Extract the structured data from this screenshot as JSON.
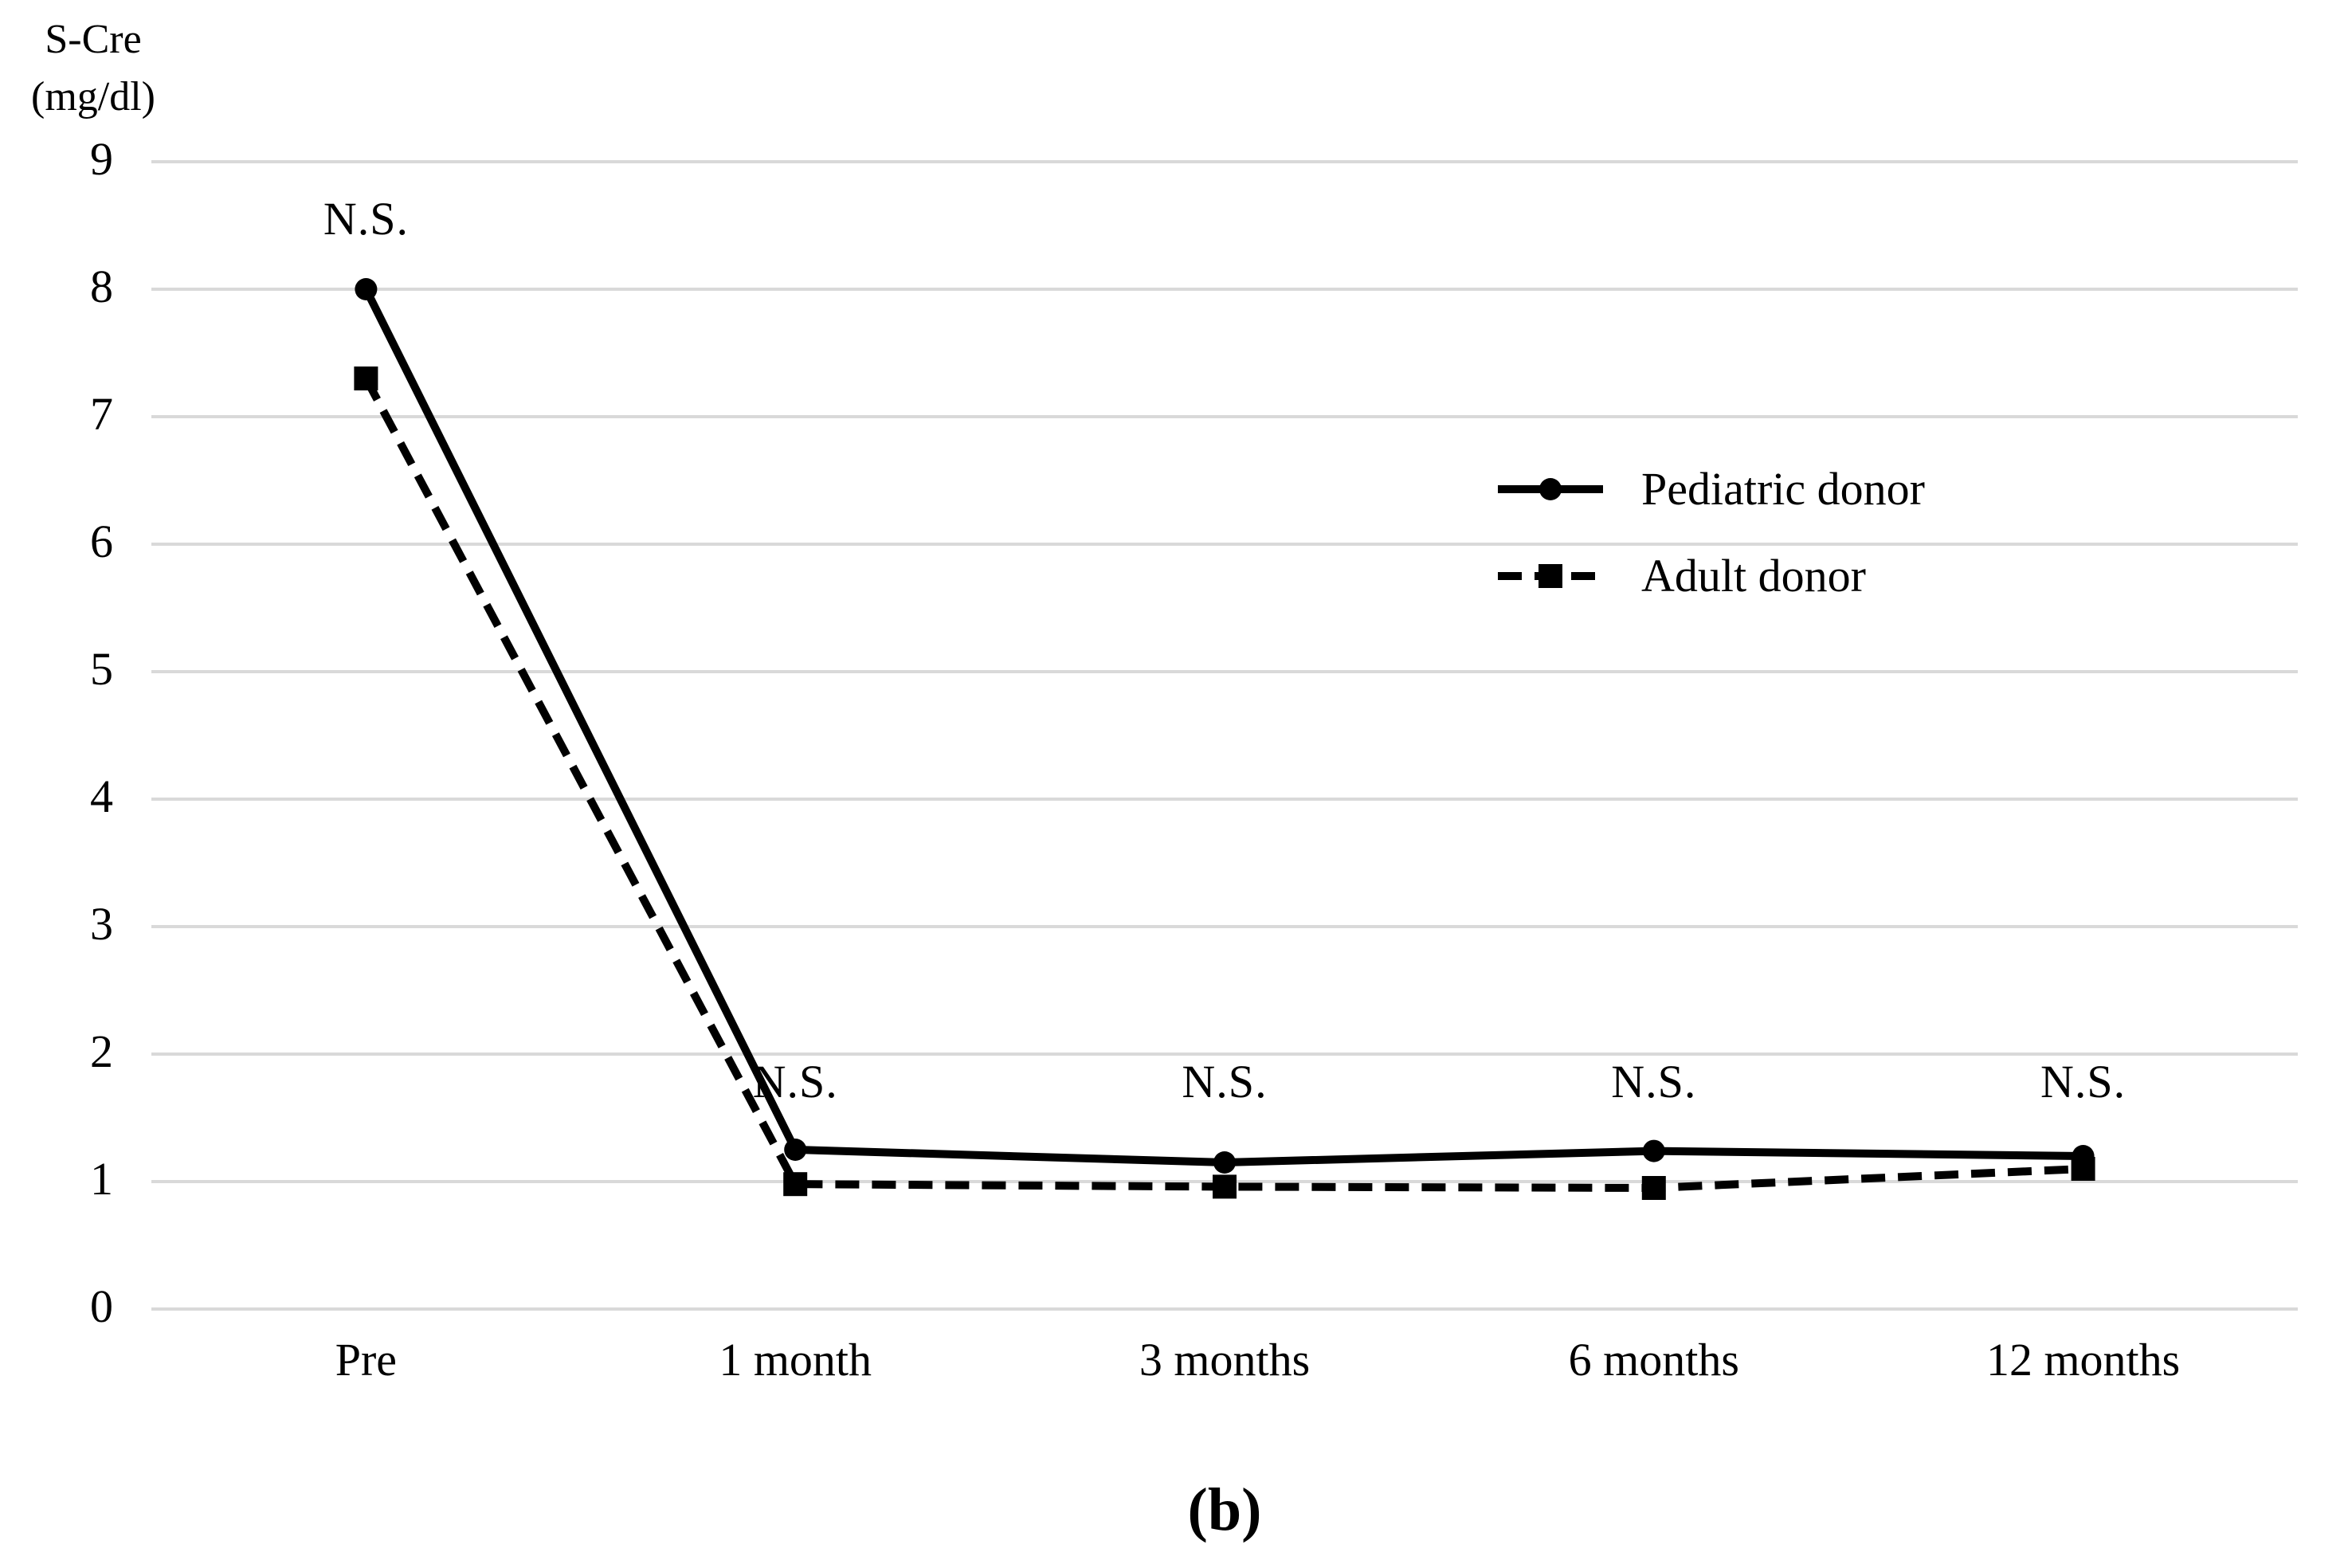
{
  "figure": {
    "caption": "(b)"
  },
  "chart_data": {
    "type": "line",
    "title": "",
    "y_axis_label_lines": [
      "S-Cre",
      "(mg/dl)"
    ],
    "categories": [
      "Pre",
      "1 month",
      "3 months",
      "6 months",
      "12 months"
    ],
    "y_axis": {
      "min": 0,
      "max": 9,
      "tick_step": 1,
      "tick_labels": [
        "0",
        "1",
        "2",
        "3",
        "4",
        "5",
        "6",
        "7",
        "8",
        "9"
      ]
    },
    "grid": "horizontal-only",
    "legend_position": "middle-right",
    "series": [
      {
        "name": "Pediatric donor",
        "slug": "pediatric-donor",
        "line_style": "solid",
        "marker": "circle",
        "values": [
          8.0,
          1.25,
          1.15,
          1.24,
          1.2
        ]
      },
      {
        "name": "Adult donor",
        "slug": "adult-donor",
        "line_style": "dashed",
        "marker": "square",
        "values": [
          7.3,
          0.98,
          0.96,
          0.95,
          1.1
        ]
      }
    ],
    "annotations": [
      {
        "text": "N.S.",
        "category_index": 0,
        "y_value": 8.55
      },
      {
        "text": "N.S.",
        "category_index": 1,
        "y_value": 1.78
      },
      {
        "text": "N.S.",
        "category_index": 2,
        "y_value": 1.78
      },
      {
        "text": "N.S.",
        "category_index": 3,
        "y_value": 1.78
      },
      {
        "text": "N.S.",
        "category_index": 4,
        "y_value": 1.78
      }
    ],
    "colors": {
      "series": "#000000",
      "gridline": "#d9d9d9",
      "background": "#ffffff",
      "text": "#000000"
    }
  }
}
